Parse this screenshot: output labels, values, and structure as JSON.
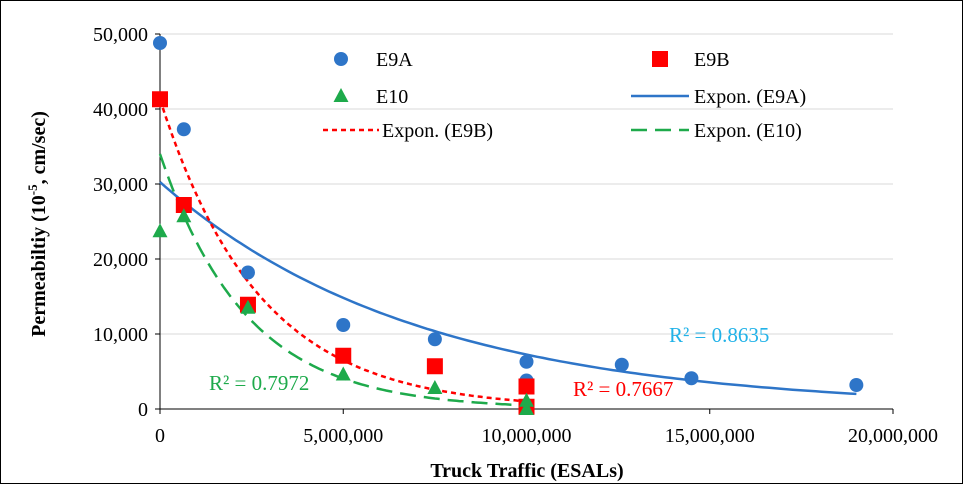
{
  "chart_data": {
    "type": "scatter",
    "xlabel": "Truck Traffic (ESALs)",
    "ylabel_parts": [
      "Permeabiltiy (10",
      "-5",
      ", cm/sec)"
    ],
    "xlim": [
      0,
      20000000
    ],
    "ylim": [
      0,
      50000
    ],
    "x_ticks": [
      0,
      5000000,
      10000000,
      15000000,
      20000000
    ],
    "x_tick_labels": [
      "0",
      "5,000,000",
      "10,000,000",
      "15,000,000",
      "20,000,000"
    ],
    "y_ticks": [
      0,
      10000,
      20000,
      30000,
      40000,
      50000
    ],
    "y_tick_labels": [
      "0",
      "10,000",
      "20,000",
      "30,000",
      "40,000",
      "50,000"
    ],
    "grid": "horizontal",
    "legend_placement": "top",
    "series": [
      {
        "name": "E9A",
        "marker": "circle",
        "color": "#2e75c8",
        "x": [
          0,
          650000,
          2400000,
          5000000,
          7500000,
          10000000,
          10000000,
          12600000,
          14500000,
          19000000
        ],
        "y": [
          48800,
          37300,
          18200,
          11200,
          9300,
          6300,
          3800,
          5900,
          4100,
          3200
        ]
      },
      {
        "name": "E9B",
        "marker": "square",
        "color": "#ff0000",
        "x": [
          0,
          650000,
          2400000,
          5000000,
          7500000,
          10000000,
          10000000
        ],
        "y": [
          41300,
          27200,
          13900,
          7100,
          5700,
          3000,
          300
        ]
      },
      {
        "name": "E10",
        "marker": "triangle",
        "color": "#1eaa4b",
        "x": [
          0,
          650000,
          2400000,
          5000000,
          7500000,
          10000000,
          10000000
        ],
        "y": [
          23700,
          25700,
          13500,
          4600,
          2800,
          1100,
          0
        ]
      }
    ],
    "trendlines": [
      {
        "name": "Expon. (E9A)",
        "type": "exponential",
        "color": "#2e75c8",
        "dash": "solid",
        "a": 30250,
        "b": 1.427e-07,
        "x_range": [
          0,
          19000000
        ],
        "r2_label": "R² = 0.8635",
        "r2_color": "#21b2e8"
      },
      {
        "name": "Expon. (E9B)",
        "type": "exponential",
        "color": "#ff0000",
        "dash": "short",
        "a": 41300,
        "b": 3.7e-07,
        "x_range": [
          0,
          10000000
        ],
        "r2_label": "R² = 0.7667",
        "r2_color": "#ff0000"
      },
      {
        "name": "Expon. (E10)",
        "type": "exponential",
        "color": "#1eaa4b",
        "dash": "long",
        "a": 34000,
        "b": 4.25e-07,
        "x_range": [
          0,
          10000000
        ],
        "r2_label": "R² = 0.7972",
        "r2_color": "#1eaa4b"
      }
    ]
  }
}
